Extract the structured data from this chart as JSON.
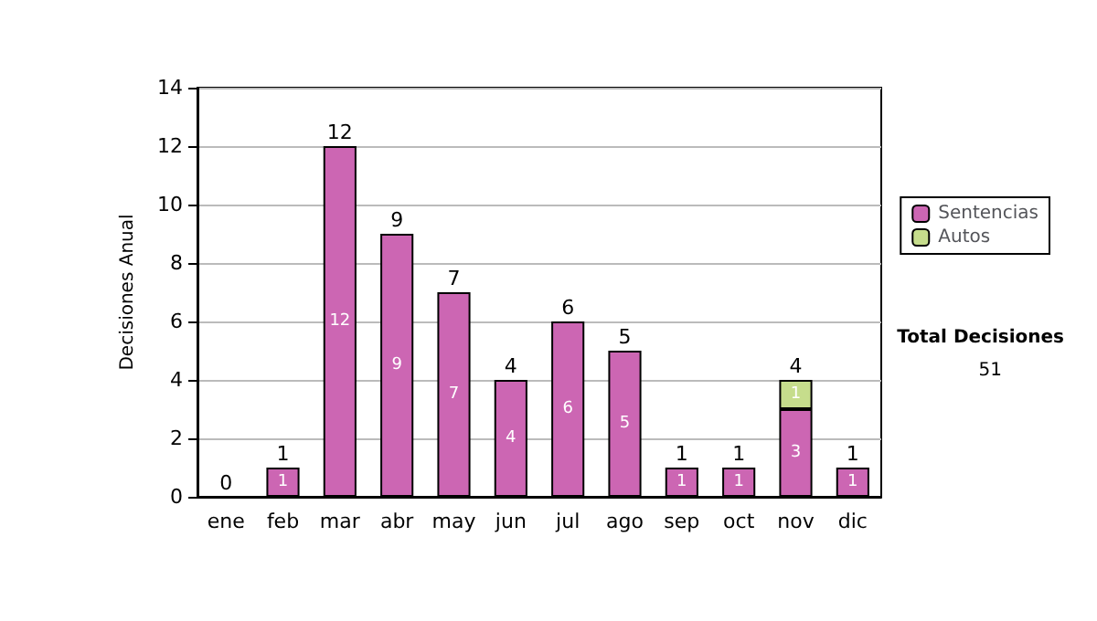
{
  "chart_data": {
    "type": "bar",
    "stacked": true,
    "ylabel": "Decisiones Anual",
    "categories": [
      "ene",
      "feb",
      "mar",
      "abr",
      "may",
      "jun",
      "jul",
      "ago",
      "sep",
      "oct",
      "nov",
      "dic"
    ],
    "series": [
      {
        "name": "Sentencias",
        "color": "#cc66b3",
        "values": [
          0,
          1,
          12,
          9,
          7,
          4,
          6,
          5,
          1,
          1,
          3,
          1
        ],
        "value_labels": [
          null,
          "1",
          "12",
          "9",
          "7",
          "4",
          "6",
          "5",
          "1",
          "1",
          "3",
          "1"
        ]
      },
      {
        "name": "Autos",
        "color": "#c6dd8c",
        "values": [
          0,
          0,
          0,
          0,
          0,
          0,
          0,
          0,
          0,
          0,
          1,
          0
        ],
        "value_labels": [
          null,
          null,
          null,
          null,
          null,
          null,
          null,
          null,
          null,
          null,
          "1",
          null
        ]
      }
    ],
    "totals": [
      "0",
      "1",
      "12",
      "9",
      "7",
      "4",
      "6",
      "5",
      "1",
      "1",
      "4",
      "1"
    ],
    "ylim": [
      0,
      14
    ],
    "yticks": [
      0,
      2,
      4,
      6,
      8,
      10,
      12,
      14
    ],
    "grid": "y",
    "legend": "right",
    "annotations": [
      "Total Decisiones",
      "51"
    ]
  }
}
